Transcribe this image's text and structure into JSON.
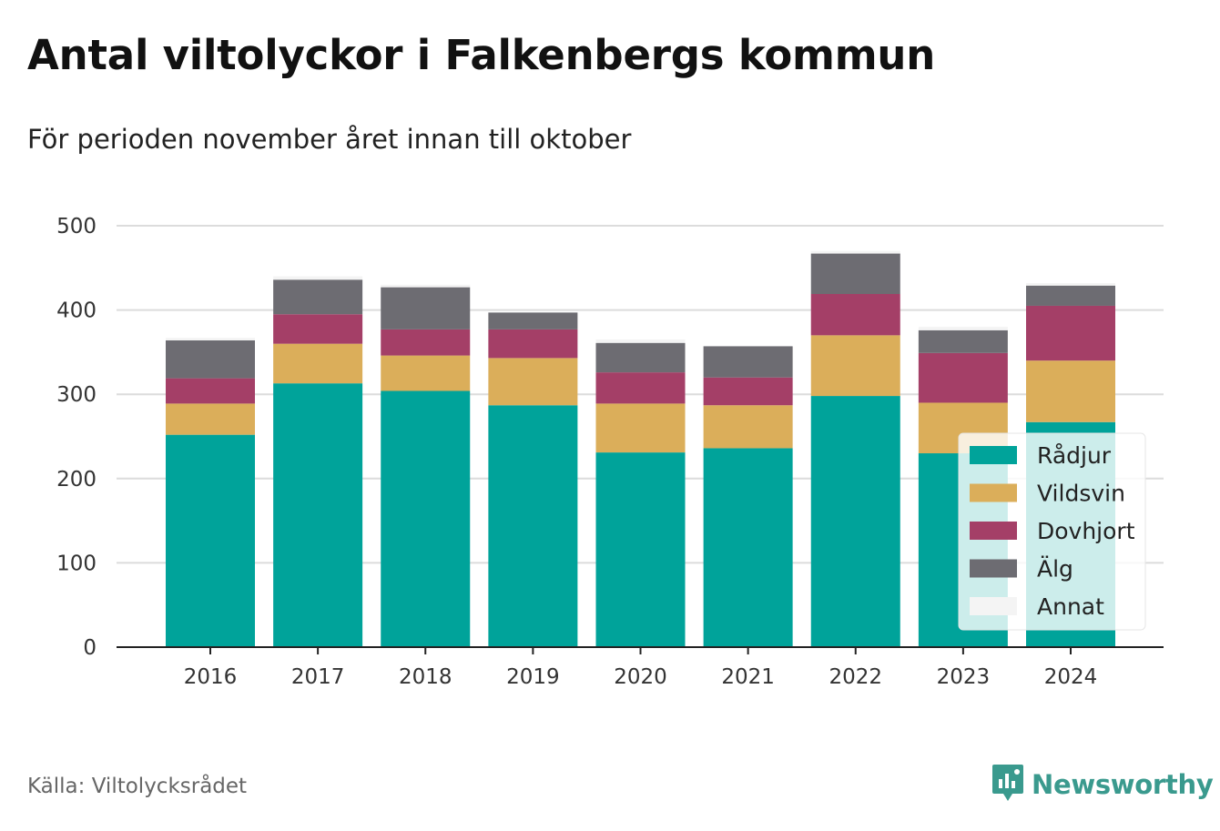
{
  "title": "Antal viltolyckor i Falkenbergs kommun",
  "subtitle": "För perioden november året innan till oktober",
  "source": "Källa: Viltolycksrådet",
  "brand": {
    "name": "Newsworthy",
    "icon": "newsworthy-logo-icon",
    "color": "#3a9a8e"
  },
  "chart_data": {
    "type": "bar",
    "stacked": true,
    "categories": [
      "2016",
      "2017",
      "2018",
      "2019",
      "2020",
      "2021",
      "2022",
      "2023",
      "2024"
    ],
    "series": [
      {
        "name": "Rådjur",
        "color": "#00a39a",
        "values": [
          252,
          313,
          304,
          287,
          231,
          236,
          298,
          230,
          267
        ]
      },
      {
        "name": "Vildsvin",
        "color": "#dbae5a",
        "values": [
          37,
          47,
          42,
          56,
          58,
          51,
          72,
          60,
          73
        ]
      },
      {
        "name": "Dovhjort",
        "color": "#a43f67",
        "values": [
          30,
          35,
          31,
          34,
          37,
          33,
          49,
          59,
          65
        ]
      },
      {
        "name": "Älg",
        "color": "#6d6c72",
        "values": [
          45,
          41,
          50,
          20,
          35,
          37,
          48,
          27,
          24
        ]
      },
      {
        "name": "Annat",
        "color": "#f4f4f4",
        "values": [
          3,
          4,
          3,
          0,
          4,
          0,
          3,
          4,
          3
        ]
      }
    ],
    "yticks": [
      0,
      100,
      200,
      300,
      400,
      500
    ],
    "ylim": [
      0,
      500
    ],
    "grid": true,
    "legend": "bottom-right"
  }
}
